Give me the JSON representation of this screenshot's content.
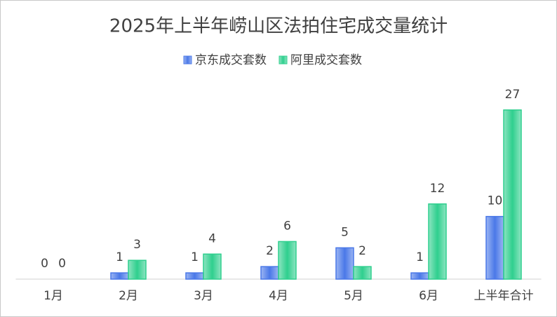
{
  "chart_data": {
    "type": "bar",
    "title": "2025年上半年崂山区法拍住宅成交量统计",
    "categories": [
      "1月",
      "2月",
      "3月",
      "4月",
      "5月",
      "6月",
      "上半年合计"
    ],
    "series": [
      {
        "name": "京东成交套数",
        "color": "#4a78e8",
        "values": [
          0,
          1,
          1,
          2,
          5,
          1,
          10
        ]
      },
      {
        "name": "阿里成交套数",
        "color": "#2fcf8e",
        "values": [
          0,
          3,
          4,
          6,
          2,
          12,
          27
        ]
      }
    ],
    "ylim": [
      0,
      30
    ],
    "legend": "top"
  }
}
